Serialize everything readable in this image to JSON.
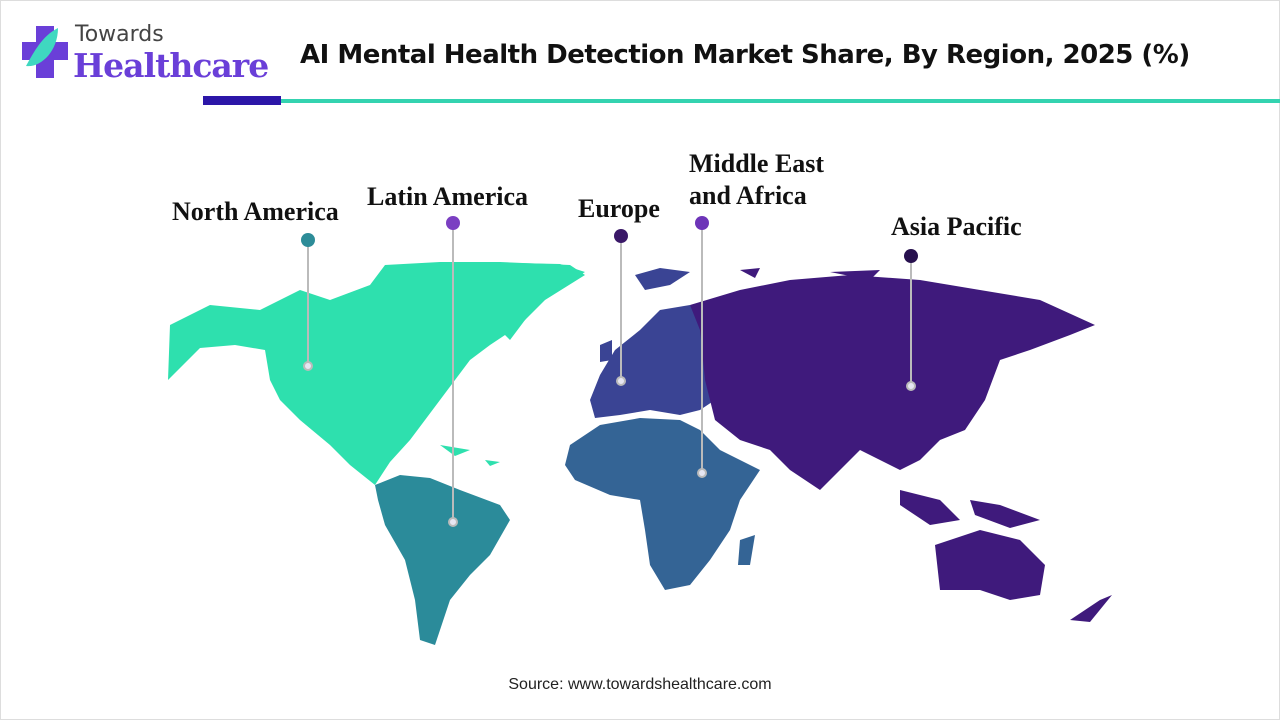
{
  "logo": {
    "line1": "Towards",
    "line2": "Healthcare"
  },
  "title": "AI Mental Health Detection Market Share, By Region, 2025 (%)",
  "regions": [
    {
      "name": "North America",
      "color": "#2ee0ae",
      "dot_color": "#2d8c98"
    },
    {
      "name": "Latin America",
      "color": "#2b8b9a",
      "dot_color": "#7b3fc2"
    },
    {
      "name": "Europe",
      "color": "#3a4494",
      "dot_color": "#3a1868"
    },
    {
      "name": "Middle East and Africa",
      "name_line1": "Middle East",
      "name_line2": "and Africa",
      "color": "#346495",
      "dot_color": "#6d34b8"
    },
    {
      "name": "Asia Pacific",
      "color": "#3f1a7c",
      "dot_color": "#27104e"
    }
  ],
  "source": "Source: www.towardshealthcare.com"
}
